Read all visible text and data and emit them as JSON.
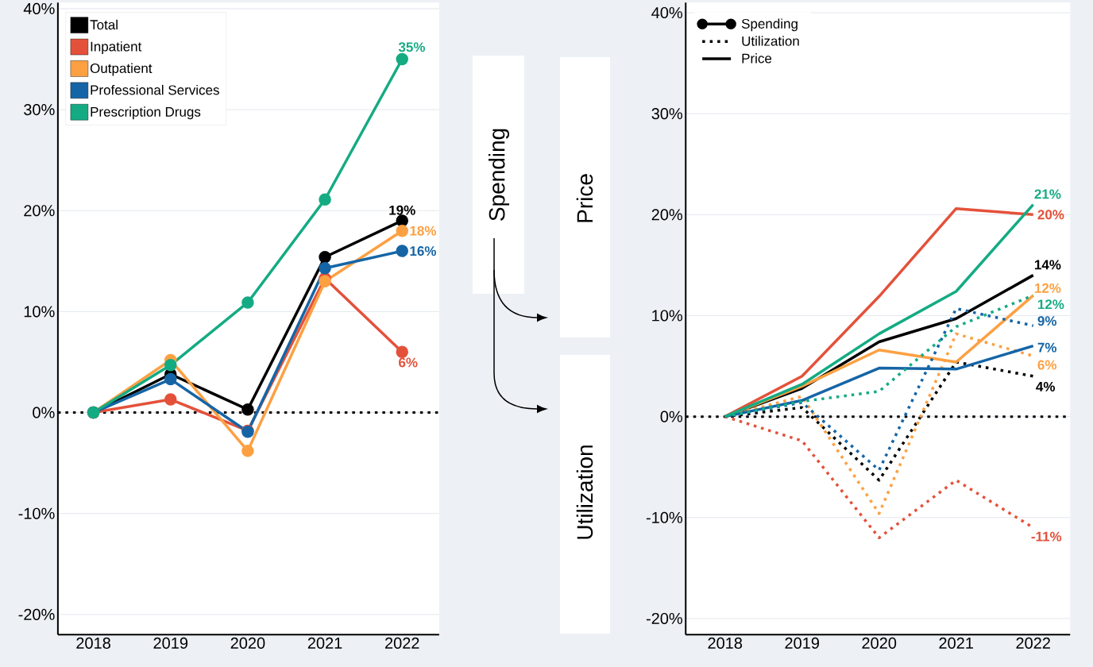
{
  "chart_data": [
    {
      "type": "line",
      "categories": [
        "2018",
        "2019",
        "2020",
        "2021",
        "2022"
      ],
      "ylim": [
        -22,
        40.6
      ],
      "yticks": [
        {
          "value": -20,
          "label": "-20%"
        },
        {
          "value": -10,
          "label": "-10%"
        },
        {
          "value": 0,
          "label": "0%"
        },
        {
          "value": 10,
          "label": "10%"
        },
        {
          "value": 20,
          "label": "20%"
        },
        {
          "value": 30,
          "label": "30%"
        },
        {
          "value": 40,
          "label": "40%"
        }
      ],
      "grid": "y",
      "legend": "top left",
      "marker": "circle",
      "ref_lines": [
        {
          "axis": "y",
          "value": 0,
          "color": "#000000",
          "line_style": "dotted"
        }
      ],
      "series": [
        {
          "name": "Total",
          "color": "#000000",
          "values": [
            0,
            3.8,
            0.3,
            15.4,
            19
          ],
          "value_labels": [
            null,
            null,
            null,
            null,
            "19%"
          ]
        },
        {
          "name": "Inpatient",
          "color": "#e4513a",
          "values": [
            0,
            1.3,
            -1.8,
            13.3,
            6
          ],
          "value_labels": [
            null,
            null,
            null,
            null,
            "6%"
          ]
        },
        {
          "name": "Outpatient",
          "color": "#fda042",
          "values": [
            0,
            5.2,
            -3.8,
            13.0,
            18
          ],
          "value_labels": [
            null,
            null,
            null,
            null,
            "18%"
          ]
        },
        {
          "name": "Professional Services",
          "color": "#1565a6",
          "values": [
            0,
            3.3,
            -1.9,
            14.3,
            16
          ],
          "value_labels": [
            null,
            null,
            null,
            null,
            "16%"
          ]
        },
        {
          "name": "Prescription Drugs",
          "color": "#14ab83",
          "values": [
            0,
            4.7,
            10.9,
            21.1,
            35
          ],
          "value_labels": [
            null,
            null,
            null,
            null,
            "35%"
          ]
        }
      ]
    },
    {
      "type": "other",
      "annotations": [
        "Spending",
        "Price",
        "Utilization"
      ]
    },
    {
      "type": "line",
      "categories": [
        "2018",
        "2019",
        "2020",
        "2021",
        "2022"
      ],
      "ylim": [
        -21.6,
        41
      ],
      "yticks": [
        {
          "value": -20,
          "label": "-20%"
        },
        {
          "value": -10,
          "label": "-10%"
        },
        {
          "value": 0,
          "label": "0%"
        },
        {
          "value": 10,
          "label": "10%"
        },
        {
          "value": 20,
          "label": "20%"
        },
        {
          "value": 30,
          "label": "30%"
        },
        {
          "value": 40,
          "label": "40%"
        }
      ],
      "grid": "y",
      "legend": "top left",
      "marker": "none",
      "ref_lines": [
        {
          "axis": "y",
          "value": 0,
          "color": "#000000",
          "line_style": "dotted"
        }
      ],
      "series": [
        {
          "name": "Spending",
          "color": "#000000",
          "marker": "circle",
          "line_style": "solid",
          "values": [
            null,
            null,
            null,
            null,
            null
          ]
        },
        {
          "name": "Utilization",
          "color": "#000000",
          "line_style": "dotted",
          "values": [
            0,
            0.9,
            -6.3,
            5.4,
            4
          ],
          "value_labels": [
            null,
            null,
            null,
            null,
            "4%"
          ]
        },
        {
          "name": "Price",
          "color": "#000000",
          "line_style": "solid",
          "values": [
            0,
            2.8,
            7.4,
            9.7,
            14
          ],
          "value_labels": [
            null,
            null,
            null,
            null,
            "14%"
          ]
        },
        {
          "color": "#e4513a",
          "line_style": "solid",
          "values": [
            0,
            4.0,
            11.9,
            20.6,
            20
          ],
          "value_labels": [
            null,
            null,
            null,
            null,
            "20%"
          ]
        },
        {
          "color": "#e4513a",
          "line_style": "dotted",
          "values": [
            0,
            -2.4,
            -12.0,
            -6.3,
            -11
          ],
          "value_labels": [
            null,
            null,
            null,
            null,
            "-11%"
          ]
        },
        {
          "color": "#fda042",
          "line_style": "solid",
          "values": [
            0,
            3.0,
            6.6,
            5.4,
            12
          ],
          "value_labels": [
            null,
            null,
            null,
            null,
            "12%"
          ]
        },
        {
          "color": "#fda042",
          "line_style": "dotted",
          "values": [
            0,
            2.0,
            -9.6,
            8.2,
            6
          ],
          "value_labels": [
            null,
            null,
            null,
            null,
            "6%"
          ]
        },
        {
          "color": "#1565a6",
          "line_style": "solid",
          "values": [
            0,
            1.6,
            4.8,
            4.7,
            7
          ],
          "value_labels": [
            null,
            null,
            null,
            null,
            "7%"
          ]
        },
        {
          "color": "#1565a6",
          "line_style": "dotted",
          "values": [
            0,
            1.4,
            -5.3,
            10.7,
            9
          ],
          "value_labels": [
            null,
            null,
            null,
            null,
            "9%"
          ]
        },
        {
          "color": "#14ab83",
          "line_style": "solid",
          "values": [
            0,
            3.2,
            8.2,
            12.4,
            21
          ],
          "value_labels": [
            null,
            null,
            null,
            null,
            "21%"
          ]
        },
        {
          "color": "#14ab83",
          "line_style": "dotted",
          "values": [
            0,
            1.5,
            2.5,
            8.9,
            12
          ],
          "value_labels": [
            null,
            null,
            null,
            null,
            "12%"
          ]
        }
      ]
    }
  ]
}
